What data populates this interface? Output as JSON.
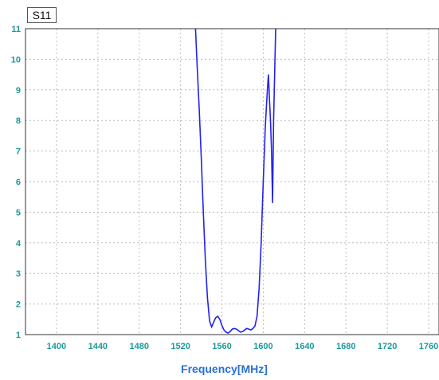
{
  "chart_data": {
    "type": "line",
    "title": "",
    "xlabel": "Frequency[MHz]",
    "ylabel": "",
    "xlim": [
      1370,
      1770
    ],
    "ylim": [
      1,
      11
    ],
    "x_ticks": [
      1400,
      1440,
      1480,
      1520,
      1560,
      1600,
      1640,
      1680,
      1720,
      1760
    ],
    "y_ticks": [
      1,
      2,
      3,
      4,
      5,
      6,
      7,
      8,
      9,
      10,
      11
    ],
    "grid": true,
    "legend": {
      "label": "S11",
      "placement": "top-left"
    },
    "colors": {
      "line": "#2222ee",
      "tick_labels": "#1a9a9a",
      "axis_label": "#2a6fd0",
      "grid": "#bbbbbb"
    },
    "series": [
      {
        "name": "S11",
        "x": [
          1534.5,
          1536,
          1538,
          1540,
          1542,
          1544,
          1546,
          1548,
          1550,
          1552,
          1554,
          1556,
          1558,
          1560,
          1562,
          1564,
          1566,
          1568,
          1570,
          1572,
          1574,
          1576,
          1578,
          1580,
          1582,
          1584,
          1586,
          1588,
          1590,
          1592,
          1594,
          1596,
          1598,
          1600,
          1602,
          1604,
          1605,
          1606,
          1607,
          1608,
          1609,
          1610,
          1611,
          1612
        ],
        "y": [
          11,
          9.8,
          8.4,
          6.8,
          5.0,
          3.4,
          2.2,
          1.45,
          1.25,
          1.4,
          1.55,
          1.6,
          1.5,
          1.3,
          1.15,
          1.08,
          1.05,
          1.1,
          1.18,
          1.2,
          1.18,
          1.13,
          1.08,
          1.1,
          1.15,
          1.2,
          1.18,
          1.15,
          1.2,
          1.28,
          1.6,
          2.5,
          4.0,
          6.0,
          7.8,
          9.0,
          9.5,
          8.7,
          8.0,
          7.0,
          5.3,
          8.0,
          9.5,
          11
        ]
      }
    ]
  }
}
